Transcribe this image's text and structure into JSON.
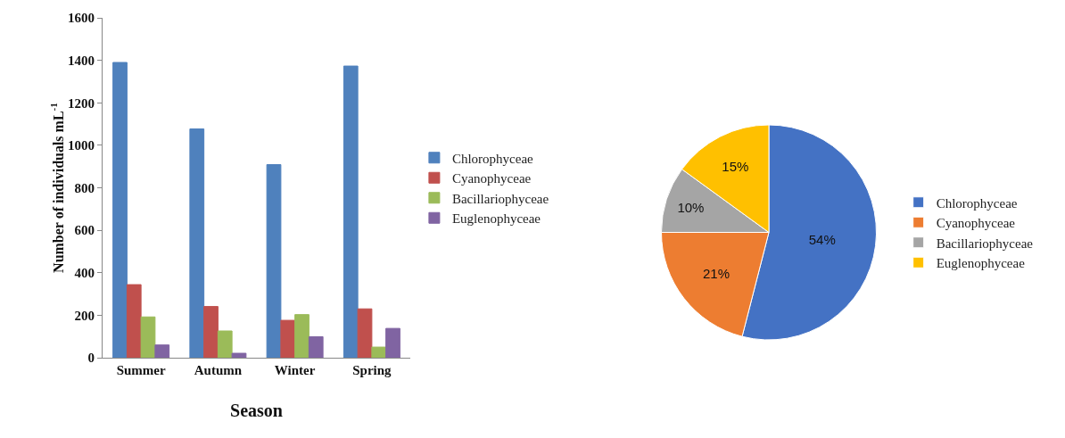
{
  "chart_data": [
    {
      "type": "bar",
      "xlabel": "Season",
      "ylabel": "Number of individuals mL$^{-1}$",
      "categories": [
        "Summer",
        "Autumn",
        "Winter",
        "Spring"
      ],
      "series": [
        {
          "name": "Chlorophyceae",
          "color": "#4f81bd",
          "values": [
            1390,
            1077,
            909,
            1373
          ]
        },
        {
          "name": "Cyanophyceae",
          "color": "#c0504d",
          "values": [
            344,
            241,
            176,
            230
          ]
        },
        {
          "name": "Bacillariophyceae",
          "color": "#9bbb59",
          "values": [
            192,
            126,
            203,
            50
          ]
        },
        {
          "name": "Euglenophyceae",
          "color": "#8064a2",
          "values": [
            60,
            21,
            99,
            138
          ]
        }
      ],
      "ylim": [
        0,
        1600
      ],
      "yticks": [
        0,
        200,
        400,
        600,
        800,
        1000,
        1200,
        1400,
        1600
      ],
      "grid": false,
      "legend": "right"
    },
    {
      "type": "pie",
      "categories": [
        "Chlorophyceae",
        "Cyanophyceae",
        "Bacillariophyceae",
        "Euglenophyceae"
      ],
      "values": [
        54,
        21,
        10,
        15
      ],
      "colors": [
        "#4472c4",
        "#ed7d31",
        "#a5a5a5",
        "#ffc000"
      ],
      "value_labels": [
        "54%",
        "21%",
        "10%",
        "15%"
      ],
      "legend": "right"
    }
  ]
}
